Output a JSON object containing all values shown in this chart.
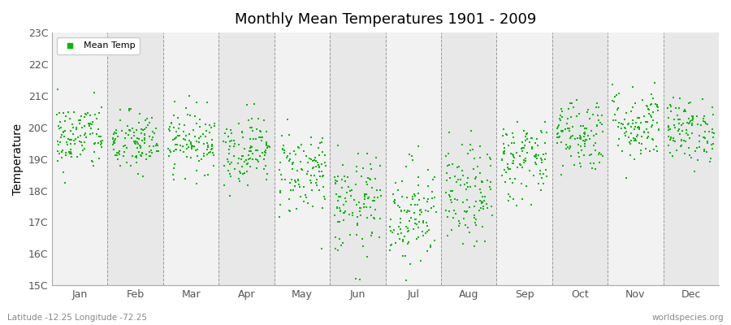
{
  "title": "Monthly Mean Temperatures 1901 - 2009",
  "ylabel": "Temperature",
  "subtitle": "Latitude -12.25 Longitude -72.25",
  "watermark": "worldspecies.org",
  "dot_color": "#00bb00",
  "bg_color_light": "#f2f2f2",
  "bg_color_dark": "#e8e8e8",
  "ylim": [
    15,
    23
  ],
  "yticks": [
    15,
    16,
    17,
    18,
    19,
    20,
    21,
    22,
    23
  ],
  "ytick_labels": [
    "15C",
    "16C",
    "17C",
    "18C",
    "19C",
    "20C",
    "21C",
    "22C",
    "23C"
  ],
  "months": [
    "Jan",
    "Feb",
    "Mar",
    "Apr",
    "May",
    "Jun",
    "Jul",
    "Aug",
    "Sep",
    "Oct",
    "Nov",
    "Dec"
  ],
  "n_years": 109,
  "month_means": [
    19.7,
    19.5,
    19.6,
    19.3,
    18.6,
    17.5,
    17.3,
    17.8,
    19.0,
    19.8,
    20.1,
    19.9
  ],
  "month_stds": [
    0.55,
    0.5,
    0.5,
    0.55,
    0.7,
    0.8,
    0.85,
    0.8,
    0.65,
    0.6,
    0.6,
    0.5
  ],
  "seed": 42
}
